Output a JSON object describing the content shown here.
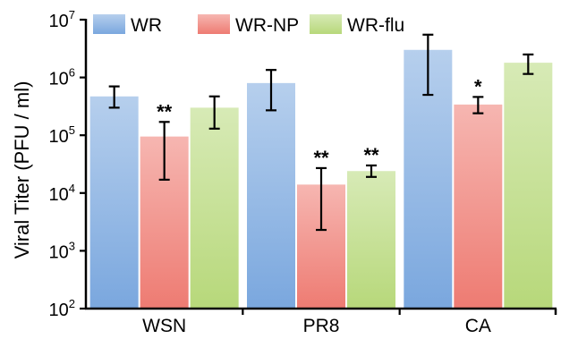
{
  "chart_data": {
    "type": "bar",
    "title": "",
    "xlabel": "",
    "ylabel": "Viral Titer (PFU / ml)",
    "yscale": "log",
    "ylim": [
      100,
      10000000
    ],
    "yticks": [
      {
        "value": 100,
        "base": "10",
        "exp": "2"
      },
      {
        "value": 1000,
        "base": "10",
        "exp": "3"
      },
      {
        "value": 10000,
        "base": "10",
        "exp": "4"
      },
      {
        "value": 100000,
        "base": "10",
        "exp": "5"
      },
      {
        "value": 1000000,
        "base": "10",
        "exp": "6"
      },
      {
        "value": 10000000,
        "base": "10",
        "exp": "7"
      }
    ],
    "categories": [
      "WSN",
      "PR8",
      "CA"
    ],
    "legend_position": "top",
    "grid": false,
    "series": [
      {
        "name": "WR",
        "color": "#7aa7de",
        "values": [
          470000,
          800000,
          3000000
        ],
        "error_low": [
          300000,
          270000,
          500000
        ],
        "error_high": [
          700000,
          1350000,
          5500000
        ],
        "annotations": [
          "",
          "",
          ""
        ]
      },
      {
        "name": "WR-NP",
        "color": "#ee7b72",
        "values": [
          95000,
          14000,
          340000
        ],
        "error_low": [
          17000,
          2300,
          240000
        ],
        "error_high": [
          170000,
          27000,
          460000
        ],
        "annotations": [
          "**",
          "**",
          "*"
        ]
      },
      {
        "name": "WR-flu",
        "color": "#b7d87a",
        "values": [
          300000,
          24000,
          1800000
        ],
        "error_low": [
          130000,
          19000,
          1150000
        ],
        "error_high": [
          470000,
          30000,
          2500000
        ],
        "annotations": [
          "",
          "**",
          ""
        ]
      }
    ]
  }
}
